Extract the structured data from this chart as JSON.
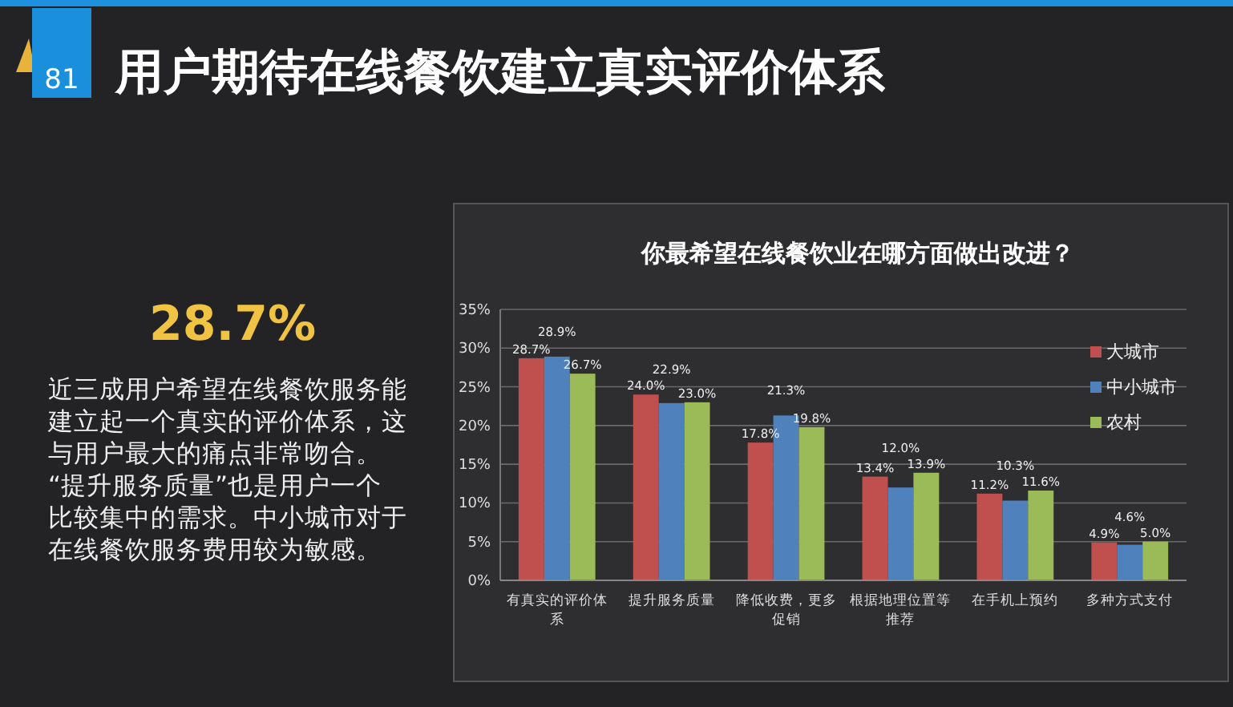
{
  "chart_data": {
    "type": "bar",
    "title": "用户期待在线餐饮建立真实评价体系",
    "subtitle": "你最希望在线餐饮业在哪方面做出改进？",
    "categories": [
      "有真实的评价体系",
      "提升服务质量",
      "降低收费，更多促销",
      "根据地理位置等推荐",
      "在手机上预约",
      "多种方式支付"
    ],
    "series": [
      {
        "name": "大城市",
        "color": "#c0504d",
        "values": [
          28.7,
          24.0,
          17.8,
          13.4,
          11.2,
          4.9
        ],
        "value_labels": [
          "28.7%",
          "24.0%",
          "17.8%",
          "13.4%",
          "11.2%",
          "4.9%"
        ]
      },
      {
        "name": "中小城市",
        "color": "#4f81bd",
        "values": [
          28.9,
          22.9,
          21.3,
          12.0,
          10.3,
          4.6
        ],
        "value_labels": [
          "28.9%",
          "22.9%",
          "21.3%",
          "12.0%",
          "10.3%",
          "4.6%"
        ]
      },
      {
        "name": "农村",
        "color": "#9bbb59",
        "values": [
          26.7,
          23.0,
          19.8,
          13.9,
          11.6,
          5.0
        ],
        "value_labels": [
          "26.7%",
          "23.0%",
          "19.8%",
          "13.9%",
          "11.6%",
          "5.0%"
        ]
      }
    ],
    "ylim": [
      0,
      35
    ],
    "yticks": [
      {
        "value": 0,
        "label": "0%"
      },
      {
        "value": 5,
        "label": "5%"
      },
      {
        "value": 10,
        "label": "10%"
      },
      {
        "value": 15,
        "label": "15%"
      },
      {
        "value": 20,
        "label": "20%"
      },
      {
        "value": 25,
        "label": "25%"
      },
      {
        "value": 30,
        "label": "30%"
      },
      {
        "value": 35,
        "label": "35%"
      }
    ],
    "grid": "y",
    "legend": "top right",
    "annotations": [
      "81",
      "28.7%",
      "近三成用户希望在线餐饮服务能建立起一个真实的评价体系，这与用户最大的痛点非常吻合。“提升服务质量”也是用户一个比较集中的需求。中小城市对于在线餐饮服务费用较为敏感。"
    ]
  }
}
